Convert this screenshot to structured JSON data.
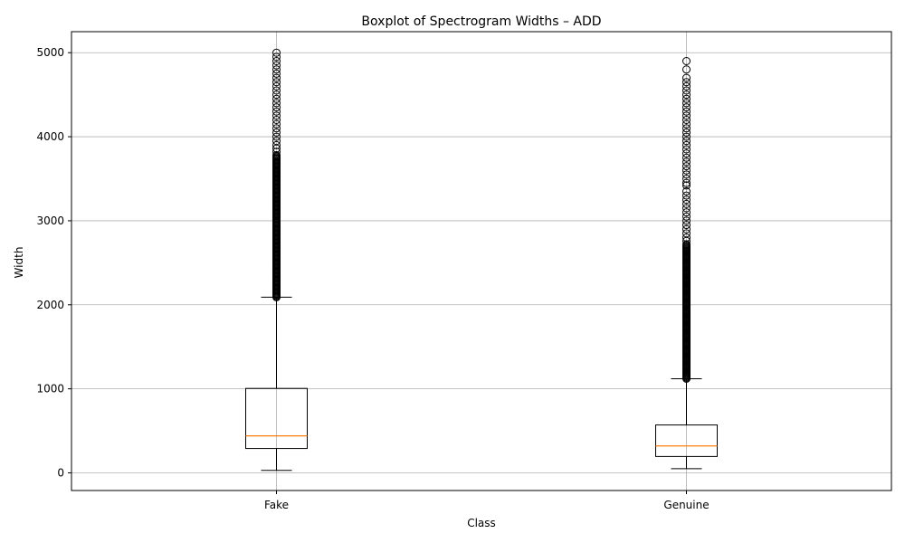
{
  "chart_data": {
    "type": "boxplot",
    "title": "Boxplot of Spectrogram Widths – ADD",
    "xlabel": "Class",
    "ylabel": "Width",
    "categories": [
      "Fake",
      "Genuine"
    ],
    "ylim": [
      -210,
      5250
    ],
    "y_ticks": [
      0,
      1000,
      2000,
      3000,
      4000,
      5000
    ],
    "grid": true,
    "colors": {
      "box": "#000000",
      "median": "#ff7f0e",
      "grid": "#b0b0b0"
    },
    "boxes": [
      {
        "name": "Fake",
        "whisker_low": 30,
        "q1": 290,
        "median": 440,
        "q3": 1005,
        "whisker_high": 2090,
        "outliers_dense_range": [
          2090,
          3780
        ],
        "outliers": [
          3820,
          3860,
          3900,
          3950,
          4000,
          4050,
          4100,
          4150,
          4200,
          4250,
          4300,
          4350,
          4400,
          4450,
          4500,
          4550,
          4600,
          4650,
          4700,
          4750,
          4800,
          4850,
          4900,
          4950,
          5000
        ]
      },
      {
        "name": "Genuine",
        "whisker_low": 50,
        "q1": 195,
        "median": 320,
        "q3": 570,
        "whisker_high": 1120,
        "outliers_dense_range": [
          1120,
          2720
        ],
        "outliers": [
          2760,
          2800,
          2850,
          2900,
          2950,
          3000,
          3050,
          3100,
          3150,
          3200,
          3250,
          3300,
          3350,
          3420,
          3450,
          3500,
          3550,
          3600,
          3650,
          3700,
          3750,
          3800,
          3850,
          3900,
          3950,
          4000,
          4050,
          4100,
          4150,
          4200,
          4250,
          4300,
          4350,
          4400,
          4450,
          4500,
          4550,
          4600,
          4650,
          4700,
          4800,
          4900
        ]
      }
    ]
  }
}
